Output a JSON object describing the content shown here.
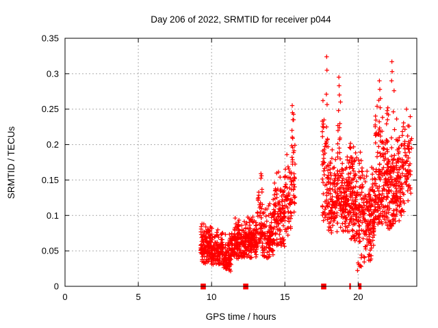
{
  "chart_data": {
    "type": "scatter",
    "title": "Day 206 of 2022, SRMTID for receiver p044",
    "xlabel": "GPS time / hours",
    "ylabel": "SRMTID / TECUs",
    "xlim": [
      0,
      24
    ],
    "ylim": [
      0,
      0.35
    ],
    "xticks": [
      0,
      5,
      10,
      15,
      20
    ],
    "xtick_labels": [
      "0",
      "5",
      "10",
      "15",
      "20"
    ],
    "yticks": [
      0,
      0.05,
      0.1,
      0.15,
      0.2,
      0.25,
      0.3,
      0.35
    ],
    "ytick_labels": [
      "0",
      "0.05",
      "0.1",
      "0.15",
      "0.2",
      "0.25",
      "0.3",
      "0.35"
    ],
    "grid": true,
    "legend_position": "none",
    "marker": "plus",
    "colors": {
      "marker": "#ff0000",
      "grid": "#a9a9a9",
      "axis": "#000000",
      "background": "#ffffff",
      "text": "#000000"
    },
    "series_name": "SRMTID",
    "clusters": [
      {
        "t0": 9.25,
        "t1": 10.0,
        "n": 130,
        "y0": 0.032,
        "y1": 0.098,
        "skew": 1.6
      },
      {
        "t0": 10.0,
        "t1": 10.75,
        "n": 120,
        "y0": 0.028,
        "y1": 0.085,
        "skew": 1.6
      },
      {
        "t0": 10.75,
        "t1": 11.35,
        "n": 100,
        "y0": 0.02,
        "y1": 0.075,
        "skew": 1.5
      },
      {
        "t0": 11.35,
        "t1": 12.45,
        "n": 170,
        "y0": 0.038,
        "y1": 0.098,
        "skew": 1.5
      },
      {
        "t0": 12.45,
        "t1": 13.1,
        "n": 120,
        "y0": 0.04,
        "y1": 0.105,
        "skew": 1.5
      },
      {
        "t0": 13.1,
        "t1": 13.45,
        "n": 45,
        "y0": 0.055,
        "y1": 0.17,
        "skew": 1.7
      },
      {
        "t0": 13.45,
        "t1": 14.2,
        "n": 110,
        "y0": 0.04,
        "y1": 0.125,
        "skew": 1.6
      },
      {
        "t0": 14.2,
        "t1": 15.0,
        "n": 120,
        "y0": 0.055,
        "y1": 0.175,
        "skew": 1.6
      },
      {
        "t0": 15.0,
        "t1": 15.45,
        "n": 60,
        "y0": 0.07,
        "y1": 0.2,
        "skew": 1.4
      },
      {
        "t0": 15.45,
        "t1": 15.7,
        "n": 35,
        "y0": 0.1,
        "y1": 0.25,
        "skew": 1.2
      },
      {
        "t0": 17.55,
        "t1": 17.95,
        "n": 60,
        "y0": 0.09,
        "y1": 0.31,
        "skew": 1.9
      },
      {
        "t0": 17.95,
        "t1": 18.6,
        "n": 100,
        "y0": 0.075,
        "y1": 0.21,
        "skew": 1.6
      },
      {
        "t0": 18.6,
        "t1": 18.8,
        "n": 30,
        "y0": 0.1,
        "y1": 0.28,
        "skew": 1.6
      },
      {
        "t0": 18.8,
        "t1": 19.45,
        "n": 120,
        "y0": 0.075,
        "y1": 0.205,
        "skew": 1.5
      },
      {
        "t0": 19.45,
        "t1": 20.3,
        "n": 150,
        "y0": 0.06,
        "y1": 0.21,
        "skew": 1.5
      },
      {
        "t0": 19.95,
        "t1": 20.25,
        "n": 8,
        "y0": 0.02,
        "y1": 0.045,
        "skew": 1.0
      },
      {
        "t0": 20.3,
        "t1": 21.1,
        "n": 130,
        "y0": 0.05,
        "y1": 0.19,
        "skew": 1.5
      },
      {
        "t0": 20.4,
        "t1": 21.1,
        "n": 12,
        "y0": 0.03,
        "y1": 0.06,
        "skew": 1.0
      },
      {
        "t0": 21.1,
        "t1": 21.75,
        "n": 120,
        "y0": 0.085,
        "y1": 0.27,
        "skew": 1.7
      },
      {
        "t0": 21.75,
        "t1": 22.45,
        "n": 140,
        "y0": 0.08,
        "y1": 0.28,
        "skew": 1.7
      },
      {
        "t0": 22.45,
        "t1": 23.15,
        "n": 120,
        "y0": 0.09,
        "y1": 0.245,
        "skew": 1.5
      },
      {
        "t0": 23.15,
        "t1": 23.65,
        "n": 55,
        "y0": 0.12,
        "y1": 0.26,
        "skew": 1.3
      }
    ],
    "outlier_points": [
      [
        15.5,
        0.255
      ],
      [
        15.52,
        0.245
      ],
      [
        15.55,
        0.235
      ],
      [
        17.85,
        0.324
      ],
      [
        17.87,
        0.305
      ],
      [
        17.83,
        0.271
      ],
      [
        17.6,
        0.262
      ],
      [
        18.68,
        0.295
      ],
      [
        18.7,
        0.283
      ],
      [
        18.72,
        0.27
      ],
      [
        18.66,
        0.248
      ],
      [
        21.45,
        0.29
      ],
      [
        21.48,
        0.278
      ],
      [
        21.52,
        0.265
      ],
      [
        21.5,
        0.252
      ],
      [
        22.3,
        0.317
      ],
      [
        22.32,
        0.303
      ],
      [
        22.28,
        0.29
      ],
      [
        22.45,
        0.276
      ],
      [
        23.3,
        0.25
      ]
    ],
    "zero_markers_bold": [
      9.43,
      12.33,
      17.65
    ],
    "zero_markers_thin": [
      19.45,
      20.07,
      20.17
    ]
  }
}
